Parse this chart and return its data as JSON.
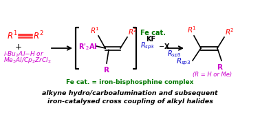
{
  "bg_color": "#ffffff",
  "title_line1": "alkyne hydro/carboalumination and subsequent",
  "title_line2": "iron-catalysed cross coupling of alkyl halides",
  "fe_cat_label": "Fe cat. = iron-bisphosphine complex",
  "colors": {
    "red": "#ff0000",
    "magenta": "#cc00cc",
    "blue": "#0000cc",
    "black": "#000000",
    "dark_green": "#007700"
  }
}
